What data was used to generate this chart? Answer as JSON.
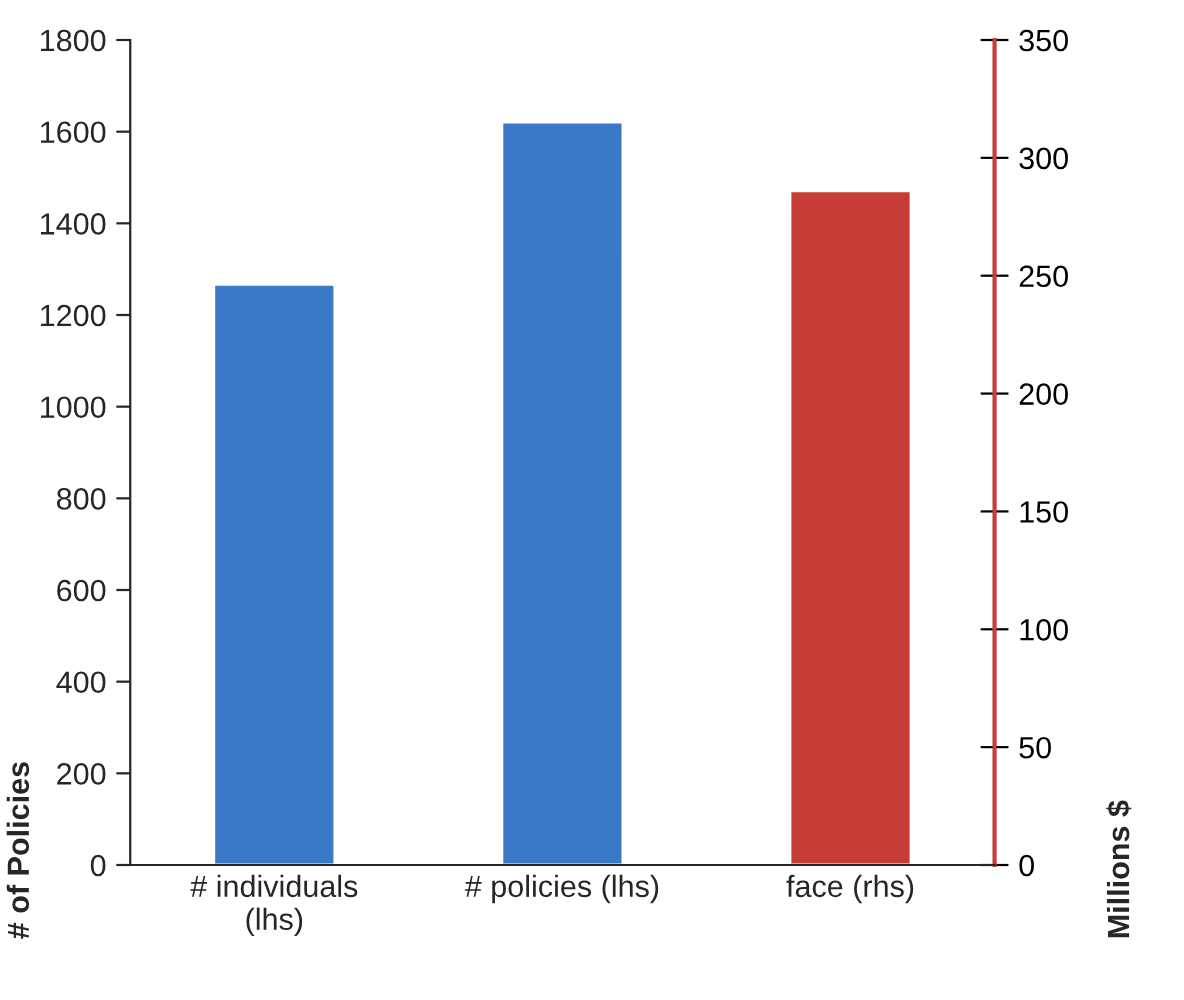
{
  "chart_data": {
    "type": "bar",
    "ylabel": "# of Policies",
    "y2label": "Millions $",
    "categories": [
      "# individuals (lhs)",
      "# policies (lhs)",
      "face (rhs)"
    ],
    "series": [
      {
        "color": "#3a78c8",
        "values": [
          1267,
          1621,
          null
        ]
      },
      {
        "color": "#c63c36",
        "values": [
          null,
          null,
          286
        ],
        "axis": "y2"
      }
    ],
    "ylim": [
      0,
      1800
    ],
    "yticks": [
      0,
      200,
      400,
      600,
      800,
      1000,
      1200,
      1400,
      1600,
      1800
    ],
    "y2lim": [
      0,
      350
    ],
    "y2ticks": [
      0,
      50,
      100,
      150,
      200,
      250,
      300,
      350
    ],
    "grid": false,
    "legend": false
  }
}
